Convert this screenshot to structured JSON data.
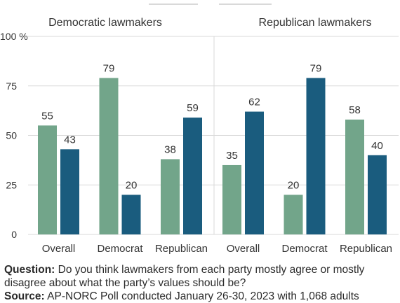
{
  "chart_data": {
    "type": "bar",
    "y_unit_label": "100 %",
    "ylim": [
      0,
      100
    ],
    "yticks": [
      "0",
      "25",
      "50",
      "75"
    ],
    "grid": true,
    "colors": {
      "Democrats": "#72a58a",
      "Republicans": "#1a5c7e"
    },
    "panels": [
      {
        "title": "Democratic lawmakers",
        "categories": [
          "Overall",
          "Democrat",
          "Republican"
        ],
        "series": [
          {
            "color_key": "Democrats",
            "values": [
              55,
              79,
              38
            ]
          },
          {
            "color_key": "Republicans",
            "values": [
              43,
              20,
              59
            ]
          }
        ]
      },
      {
        "title": "Republican lawmakers",
        "categories": [
          "Overall",
          "Democrat",
          "Republican"
        ],
        "series": [
          {
            "color_key": "Democrats",
            "values": [
              35,
              20,
              58
            ]
          },
          {
            "color_key": "Republicans",
            "values": [
              62,
              79,
              40
            ]
          }
        ]
      }
    ]
  },
  "notes": {
    "question_label": "Question:",
    "question_text": "Do you think lawmakers from each party mostly agree or mostly disagree about what the party’s values should be?",
    "source_label": "Source:",
    "source_text": "AP-NORC Poll conducted January 26-30, 2023 with 1,068 adults"
  }
}
